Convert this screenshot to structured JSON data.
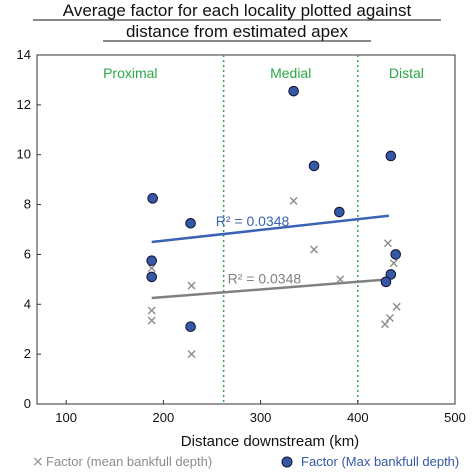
{
  "chart_data": {
    "type": "scatter",
    "title_lines": [
      "Average factor for each locality plotted against",
      "distance from estimated apex"
    ],
    "xlabel": "Distance downstream (km)",
    "ylabel": "",
    "xlim": [
      70,
      500
    ],
    "ylim": [
      0,
      14
    ],
    "x_ticks": [
      100,
      200,
      300,
      400,
      500
    ],
    "y_ticks": [
      0,
      2,
      4,
      6,
      8,
      10,
      12,
      14
    ],
    "grid": false,
    "zones": [
      {
        "label": "Proximal",
        "color": "#2aa845"
      },
      {
        "label": "Medial",
        "color": "#2aa845"
      },
      {
        "label": "Distal",
        "color": "#2aa845"
      }
    ],
    "zone_boundaries": [
      262,
      400
    ],
    "series": [
      {
        "name": "Factor (mean bankfull depth)",
        "marker": "x",
        "color": "#8c8c8c",
        "points": [
          [
            188,
            5.45
          ],
          [
            188,
            3.75
          ],
          [
            188,
            3.35
          ],
          [
            229,
            4.75
          ],
          [
            229,
            2.0
          ],
          [
            334,
            8.15
          ],
          [
            355,
            6.2
          ],
          [
            382,
            5.0
          ],
          [
            431,
            6.45
          ],
          [
            437,
            5.65
          ],
          [
            440,
            3.9
          ],
          [
            433,
            3.45
          ],
          [
            428,
            3.2
          ]
        ],
        "trendline": {
          "x": [
            188,
            432
          ],
          "y": [
            4.25,
            5.0
          ],
          "color": "#808080",
          "r2_label": "R² = 0.0348"
        }
      },
      {
        "name": "Factor (Max bankfull depth)",
        "marker": "circle",
        "color": "#3558a6",
        "points": [
          [
            189,
            8.25
          ],
          [
            188,
            5.75
          ],
          [
            188,
            5.1
          ],
          [
            228,
            7.25
          ],
          [
            228,
            3.1
          ],
          [
            334,
            12.55
          ],
          [
            355,
            9.55
          ],
          [
            381,
            7.7
          ],
          [
            434,
            9.95
          ],
          [
            439,
            6.0
          ],
          [
            434,
            5.2
          ],
          [
            429,
            4.9
          ]
        ],
        "trendline": {
          "x": [
            188,
            432
          ],
          "y": [
            6.5,
            7.55
          ],
          "color": "#3a62b5",
          "r2_label": "R² = 0.0348"
        }
      }
    ]
  }
}
